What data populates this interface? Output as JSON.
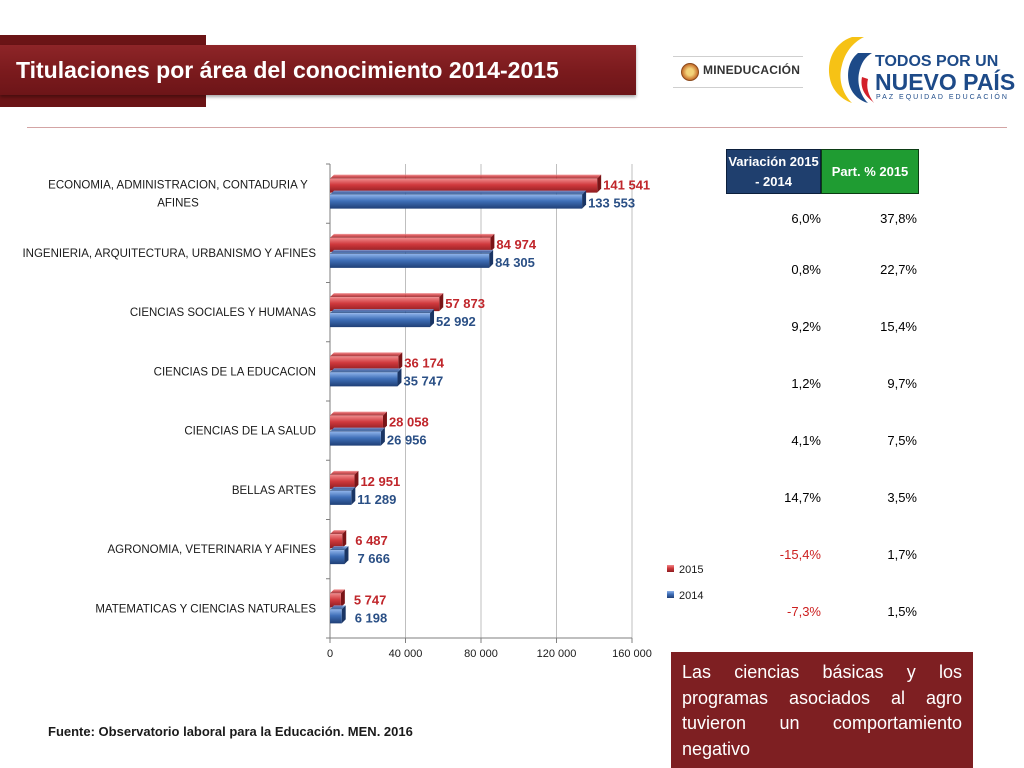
{
  "header": {
    "title": "Titulaciones por área del conocimiento 2014-2015",
    "ministry_logo_text": "MINEDUCACIÓN",
    "brand_line1": "TODOS POR UN",
    "brand_line2": "NUEVO PAÍS",
    "brand_tagline": "PAZ  EQUIDAD  EDUCACIÓN"
  },
  "chart_data": {
    "type": "bar",
    "orientation": "horizontal",
    "categories": [
      "ECONOMIA, ADMINISTRACION, CONTADURIA Y AFINES",
      "INGENIERIA, ARQUITECTURA, URBANISMO Y AFINES",
      "CIENCIAS SOCIALES Y HUMANAS",
      "CIENCIAS DE LA EDUCACION",
      "CIENCIAS DE LA SALUD",
      "BELLAS ARTES",
      "AGRONOMIA, VETERINARIA Y AFINES",
      "MATEMATICAS Y CIENCIAS NATURALES"
    ],
    "category_lines": [
      [
        "ECONOMIA, ADMINISTRACION, CONTADURIA Y",
        "AFINES"
      ],
      [
        "INGENIERIA, ARQUITECTURA, URBANISMO Y AFINES"
      ],
      [
        "CIENCIAS SOCIALES Y HUMANAS"
      ],
      [
        "CIENCIAS DE LA EDUCACION"
      ],
      [
        "CIENCIAS DE LA SALUD"
      ],
      [
        "BELLAS ARTES"
      ],
      [
        "AGRONOMIA, VETERINARIA Y AFINES"
      ],
      [
        "MATEMATICAS Y CIENCIAS NATURALES"
      ]
    ],
    "series": [
      {
        "name": "2015",
        "color": "#c93a3d",
        "values": [
          141541,
          84974,
          57873,
          36174,
          28058,
          12951,
          6487,
          5747
        ],
        "labels": [
          "141 541",
          "84 974",
          "57 873",
          "36 174",
          "28 058",
          "12 951",
          "6 487",
          "5 747"
        ]
      },
      {
        "name": "2014",
        "color": "#3d6cb3",
        "values": [
          133553,
          84305,
          52992,
          35747,
          26956,
          11289,
          7666,
          6198
        ],
        "labels": [
          "133 553",
          "84 305",
          "52 992",
          "35 747",
          "26 956",
          "11 289",
          "7 666",
          "6 198"
        ]
      }
    ],
    "xlim": [
      0,
      160000
    ],
    "xticks": [
      0,
      40000,
      80000,
      120000,
      160000
    ],
    "xtick_labels": [
      "0",
      "40 000",
      "80 000",
      "120 000",
      "160 000"
    ],
    "grid": "vertical",
    "legend": {
      "position": "right",
      "entries": [
        "2015",
        "2014"
      ]
    }
  },
  "table": {
    "headers": [
      "Variación 2015 - 2014",
      "Part. % 2015"
    ],
    "header_colors": [
      "#1f3f6e",
      "#1f9c32"
    ],
    "rows": [
      {
        "variacion": "6,0%",
        "part": "37,8%"
      },
      {
        "variacion": "0,8%",
        "part": "22,7%"
      },
      {
        "variacion": "9,2%",
        "part": "15,4%"
      },
      {
        "variacion": "1,2%",
        "part": "9,7%"
      },
      {
        "variacion": "4,1%",
        "part": "7,5%"
      },
      {
        "variacion": "14,7%",
        "part": "3,5%"
      },
      {
        "variacion": "-15,4%",
        "part": "1,7%"
      },
      {
        "variacion": "-7,3%",
        "part": "1,5%"
      }
    ]
  },
  "note": "Las ciencias básicas y los programas asociados al agro tuvieron un comportamiento negativo",
  "source": "Fuente: Observatorio laboral para la Educación. MEN. 2016"
}
